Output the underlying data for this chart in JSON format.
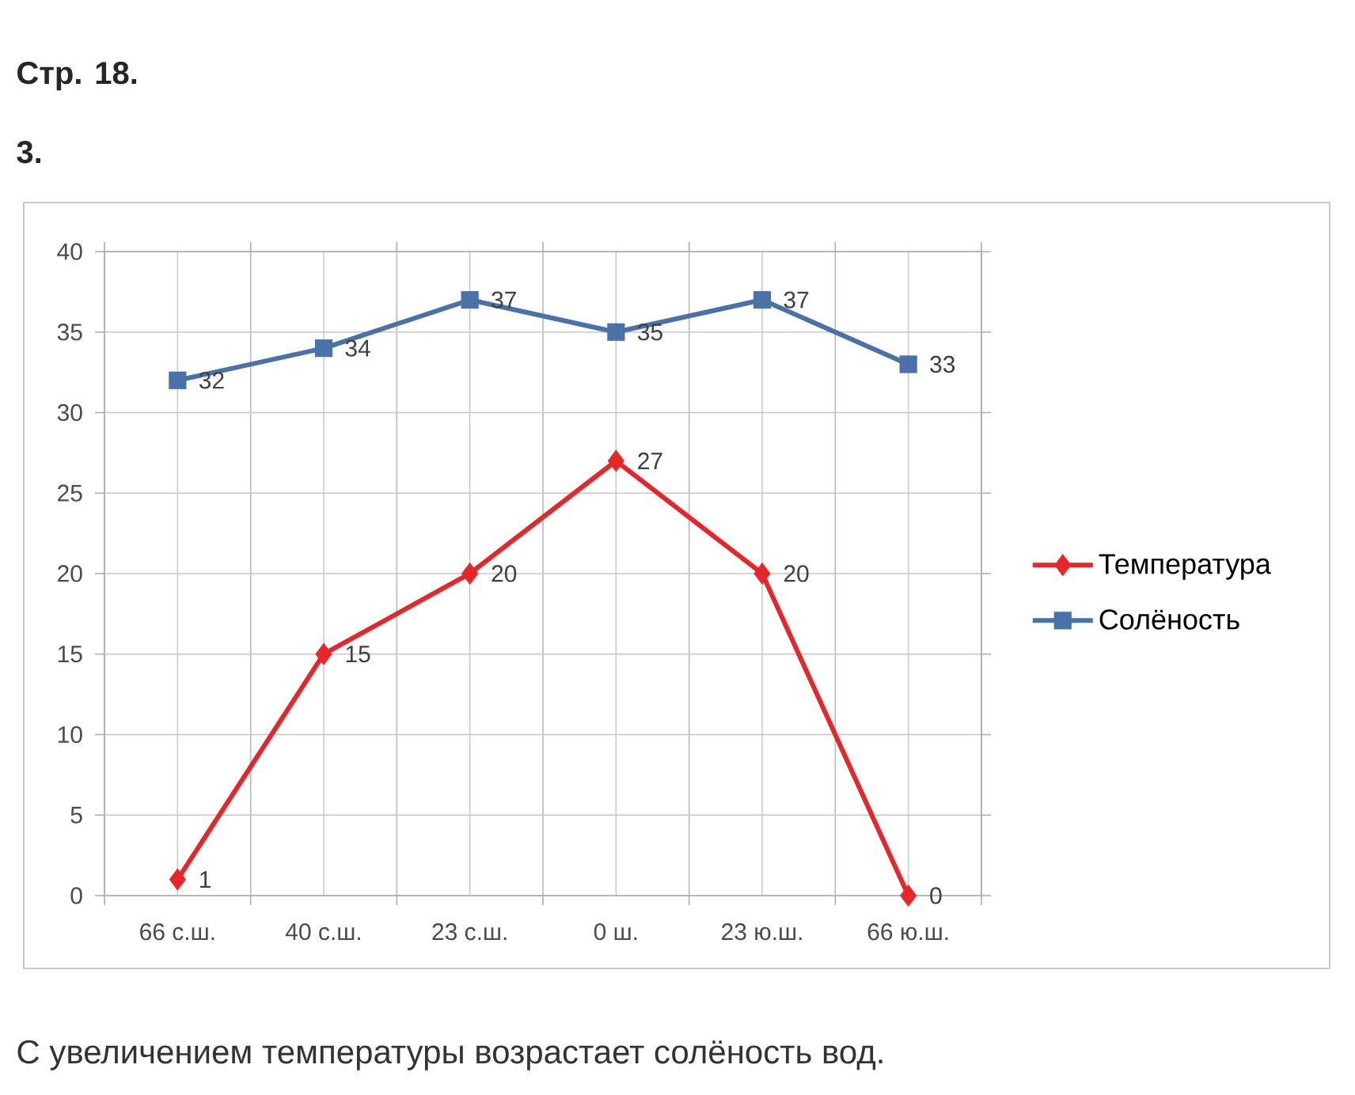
{
  "chart_data": {
    "type": "line",
    "title": "Стр. 18.",
    "subtitle": "3.",
    "categories": [
      "66 с.ш.",
      "40 с.ш.",
      "23 с.ш.",
      "0 ш.",
      "23 ю.ш.",
      "66 ю.ш."
    ],
    "series": [
      {
        "name": "Температура",
        "color": "#e8262a",
        "marker": "diamond",
        "values": [
          1,
          15,
          20,
          27,
          20,
          0
        ]
      },
      {
        "name": "Солёность",
        "color": "#4a72a8",
        "marker": "square",
        "values": [
          32,
          34,
          37,
          35,
          37,
          33
        ]
      }
    ],
    "ylim": [
      0,
      40
    ],
    "yticks": [
      0,
      5,
      10,
      15,
      20,
      25,
      30,
      35,
      40
    ],
    "grid": true,
    "legend": "right",
    "data_labels": true,
    "line_style": "solid",
    "annotations": [
      "С увеличением температуры возрастает солёность вод."
    ]
  }
}
